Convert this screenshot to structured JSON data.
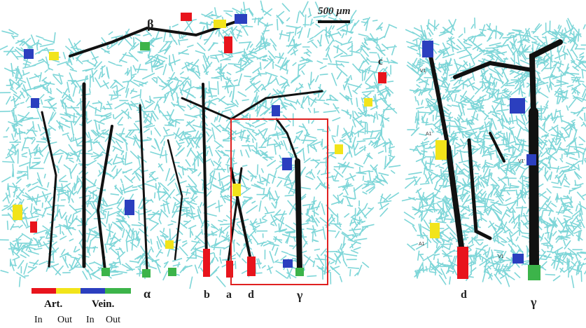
{
  "scale_bar": {
    "label": "500 µm"
  },
  "left_panel": {
    "labels": {
      "beta": "β",
      "c": "c",
      "alpha": "α",
      "b": "b",
      "a": "a",
      "d": "d",
      "gamma": "γ"
    }
  },
  "right_panel": {
    "labels": {
      "d": "d",
      "gamma": "γ"
    },
    "small_labels": {
      "v1": "V1",
      "a1": "A1",
      "v1p": "V1'",
      "a1p": "A1'"
    }
  },
  "legend": {
    "group_art": "Art.",
    "group_vein": "Vein.",
    "sub_in_1": "In",
    "sub_out_1": "Out",
    "sub_in_2": "In",
    "sub_out_2": "Out",
    "colors": {
      "art_in": "#e8141c",
      "art_out": "#f2e41a",
      "vein_in": "#2b3fbf",
      "vein_out": "#3cb44a"
    }
  },
  "colors": {
    "capillary": "#7ed6d8",
    "vessel": "#111111",
    "roi_box": "#e02020"
  }
}
